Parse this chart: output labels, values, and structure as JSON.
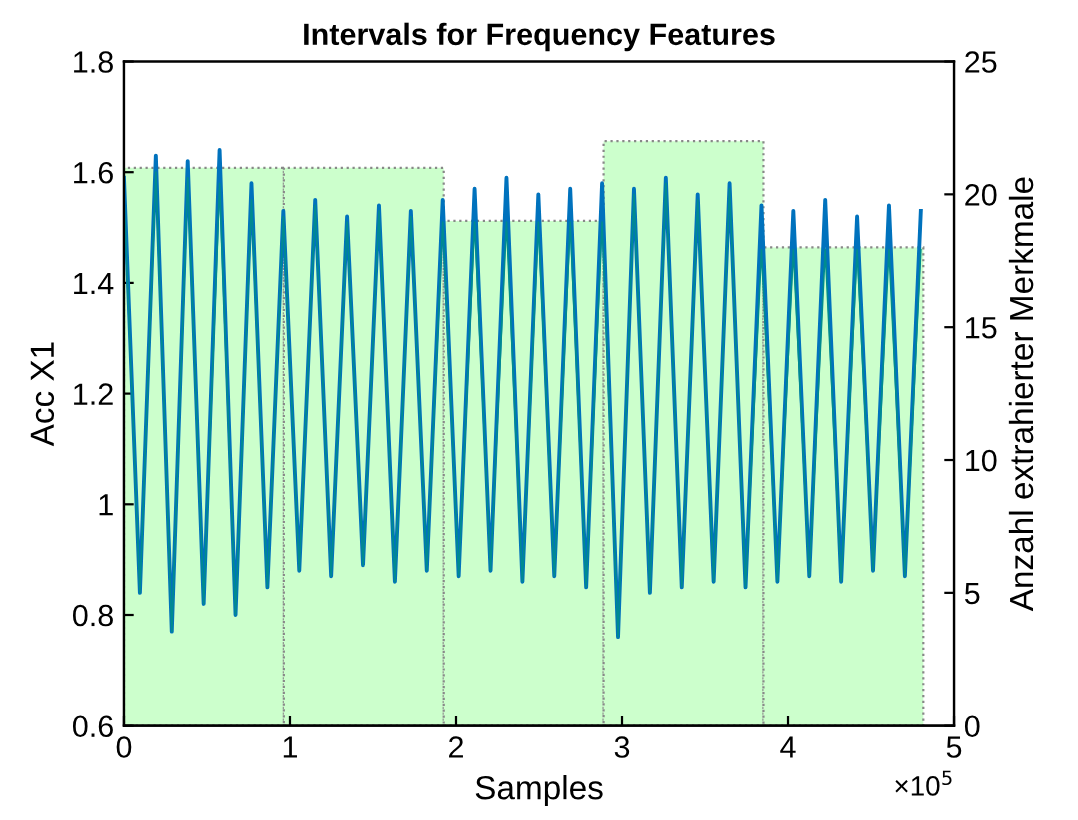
{
  "chart_data": {
    "type": "line",
    "title": "Intervals for Frequency Features",
    "xlabel": "Samples",
    "ylabel": "Acc X1",
    "y2label": "Anzahl extrahierter Merkmale",
    "annotations": [
      "×10$^{5}$"
    ],
    "xlim": [
      0,
      5
    ],
    "xticks": [
      0,
      1,
      2,
      3,
      4,
      5
    ],
    "ylim": [
      0.6,
      1.8
    ],
    "yticks": [
      0.6,
      0.8,
      1,
      1.2,
      1.4,
      1.6,
      1.8
    ],
    "y2lim": [
      0,
      25
    ],
    "y2ticks": [
      0,
      5,
      10,
      15,
      20,
      25
    ],
    "grid": false,
    "legend": false,
    "series": [
      {
        "type": "bar",
        "axis": "y2",
        "color": "#ccffcc",
        "x": [
          0.4815,
          1.4445,
          2.4075,
          3.3705,
          4.3335
        ],
        "values": [
          21,
          21,
          19,
          22,
          18
        ]
      },
      {
        "color": "#0072bd",
        "x": [
          0,
          0.096,
          0.192,
          0.288,
          0.384,
          0.48,
          0.576,
          0.672,
          0.768,
          0.864,
          0.96,
          1.056,
          1.152,
          1.248,
          1.344,
          1.44,
          1.536,
          1.632,
          1.728,
          1.824,
          1.92,
          2.016,
          2.112,
          2.208,
          2.304,
          2.4,
          2.496,
          2.592,
          2.688,
          2.784,
          2.88,
          2.976,
          3.072,
          3.168,
          3.264,
          3.36,
          3.456,
          3.552,
          3.648,
          3.744,
          3.84,
          3.936,
          4.032,
          4.128,
          4.224,
          4.32,
          4.416,
          4.512,
          4.608,
          4.704,
          4.8
        ],
        "values": [
          1.59,
          0.84,
          1.63,
          0.77,
          1.62,
          0.82,
          1.64,
          0.8,
          1.58,
          0.85,
          1.53,
          0.88,
          1.55,
          0.87,
          1.52,
          0.89,
          1.54,
          0.86,
          1.53,
          0.88,
          1.55,
          0.87,
          1.57,
          0.88,
          1.59,
          0.86,
          1.56,
          0.87,
          1.57,
          0.85,
          1.58,
          0.76,
          1.57,
          0.84,
          1.59,
          0.85,
          1.56,
          0.86,
          1.58,
          0.85,
          1.54,
          0.86,
          1.53,
          0.87,
          1.55,
          0.86,
          1.52,
          0.88,
          1.54,
          0.87,
          1.53
        ]
      },
      {
        "color": "#008b8f",
        "x": [
          0,
          0.096,
          0.192,
          0.288,
          0.384,
          0.48,
          0.576,
          0.672,
          0.768,
          0.864,
          0.96,
          1.056,
          1.152,
          1.248,
          1.344,
          1.44,
          1.536,
          1.632,
          1.728,
          1.824,
          1.92,
          2.016,
          2.112,
          2.208,
          2.304,
          2.4,
          2.496,
          2.592,
          2.688,
          2.784,
          2.88,
          2.976,
          3.072,
          3.168,
          3.264,
          3.36,
          3.456,
          3.552,
          3.648,
          3.744,
          3.84,
          3.936,
          4.032,
          4.128,
          4.224,
          4.32,
          4.416,
          4.512,
          4.608,
          4.704,
          4.8
        ],
        "values": [
          1.56,
          0.84,
          1.6,
          0.77,
          1.59,
          0.82,
          1.58,
          0.8,
          1.55,
          0.85,
          1.52,
          0.88,
          1.54,
          0.87,
          1.51,
          0.89,
          1.53,
          0.86,
          1.52,
          0.88,
          1.51,
          0.87,
          1.51,
          0.88,
          1.51,
          0.86,
          1.51,
          0.87,
          1.51,
          0.85,
          1.51,
          0.76,
          1.56,
          0.84,
          1.58,
          0.85,
          1.55,
          0.86,
          1.57,
          0.85,
          1.46,
          0.86,
          1.46,
          0.87,
          1.46,
          0.86,
          1.46,
          0.88,
          1.46,
          0.87,
          1.46
        ]
      }
    ]
  }
}
